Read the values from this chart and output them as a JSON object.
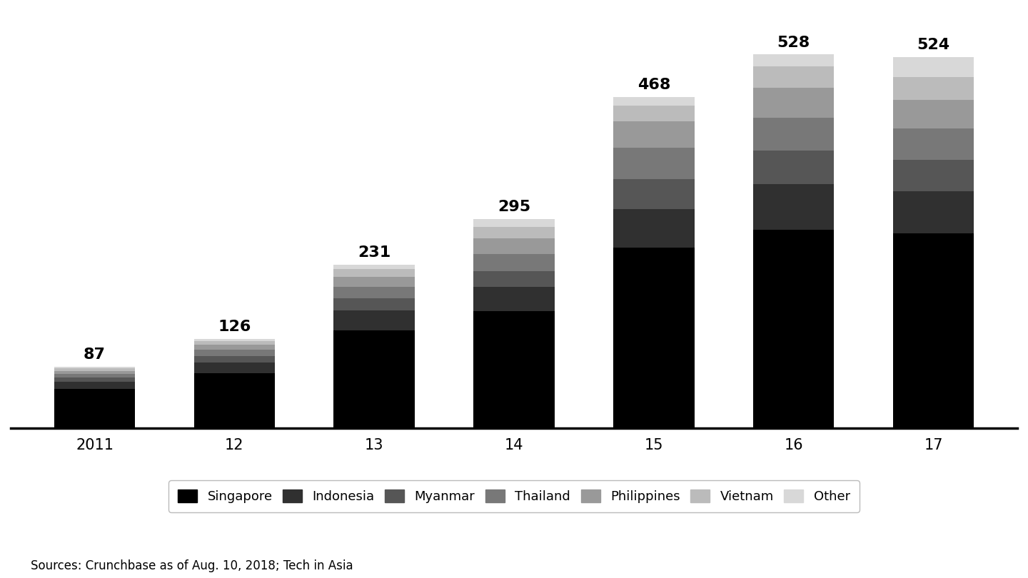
{
  "years": [
    "2011",
    "12",
    "13",
    "14",
    "15",
    "16",
    "17"
  ],
  "totals": [
    87,
    126,
    231,
    295,
    468,
    528,
    524
  ],
  "categories": [
    "Singapore",
    "Indonesia",
    "Myanmar",
    "Thailand",
    "Philippines",
    "Vietnam",
    "Other"
  ],
  "colors": [
    "#000000",
    "#303030",
    "#565656",
    "#787878",
    "#999999",
    "#bbbbbb",
    "#d8d8d8"
  ],
  "data": {
    "Singapore": [
      55,
      78,
      138,
      165,
      255,
      280,
      275
    ],
    "Indonesia": [
      10,
      15,
      28,
      35,
      55,
      65,
      60
    ],
    "Myanmar": [
      6,
      9,
      17,
      22,
      42,
      47,
      44
    ],
    "Thailand": [
      6,
      9,
      17,
      24,
      44,
      47,
      45
    ],
    "Philippines": [
      4,
      7,
      14,
      22,
      38,
      42,
      40
    ],
    "Vietnam": [
      4,
      5,
      11,
      16,
      22,
      30,
      32
    ],
    "Other": [
      2,
      3,
      6,
      11,
      12,
      17,
      28
    ]
  },
  "source_text": "Sources: Crunchbase as of Aug. 10, 2018; Tech in Asia",
  "bar_width": 0.58,
  "ylim": [
    0,
    590
  ],
  "label_fontsize": 16,
  "tick_fontsize": 15,
  "legend_fontsize": 13,
  "source_fontsize": 12
}
